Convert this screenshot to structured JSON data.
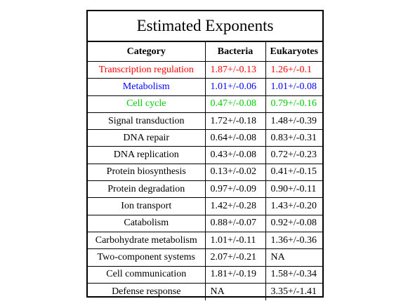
{
  "title": "Estimated Exponents",
  "headers": [
    "Category",
    "Bacteria",
    "Eukaryotes"
  ],
  "rows": [
    {
      "category": "Transcription regulation",
      "bacteria": "1.87+/-0.13",
      "eukaryotes": "1.26+/-0.1",
      "color": "#ff0000"
    },
    {
      "category": "Metabolism",
      "bacteria": "1.01+/-0.06",
      "eukaryotes": "1.01+/-0.08",
      "color": "#0000ff"
    },
    {
      "category": "Cell cycle",
      "bacteria": "0.47+/-0.08",
      "eukaryotes": "0.79+/-0.16",
      "color": "#00cc00"
    },
    {
      "category": "Signal transduction",
      "bacteria": "1.72+/-0.18",
      "eukaryotes": "1.48+/-0.39",
      "color": "#000000"
    },
    {
      "category": "DNA repair",
      "bacteria": "0.64+/-0.08",
      "eukaryotes": "0.83+/-0.31",
      "color": "#000000"
    },
    {
      "category": "DNA replication",
      "bacteria": "0.43+/-0.08",
      "eukaryotes": "0.72+/-0.23",
      "color": "#000000"
    },
    {
      "category": "Protein biosynthesis",
      "bacteria": "0.13+/-0.02",
      "eukaryotes": "0.41+/-0.15",
      "color": "#000000"
    },
    {
      "category": "Protein degradation",
      "bacteria": "0.97+/-0.09",
      "eukaryotes": "0.90+/-0.11",
      "color": "#000000"
    },
    {
      "category": "Ion transport",
      "bacteria": "1.42+/-0.28",
      "eukaryotes": "1.43+/-0.20",
      "color": "#000000"
    },
    {
      "category": "Catabolism",
      "bacteria": "0.88+/-0.07",
      "eukaryotes": "0.92+/-0.08",
      "color": "#000000"
    },
    {
      "category": "Carbohydrate metabolism",
      "bacteria": "1.01+/-0.11",
      "eukaryotes": "1.36+/-0.36",
      "color": "#000000"
    },
    {
      "category": "Two-component systems",
      "bacteria": "2.07+/-0.21",
      "eukaryotes": "NA",
      "color": "#000000"
    },
    {
      "category": "Cell communication",
      "bacteria": "1.81+/-0.19",
      "eukaryotes": "1.58+/-0.34",
      "color": "#000000"
    },
    {
      "category": "Defense response",
      "bacteria": "NA",
      "eukaryotes": "3.35+/-1.41",
      "color": "#000000"
    }
  ]
}
